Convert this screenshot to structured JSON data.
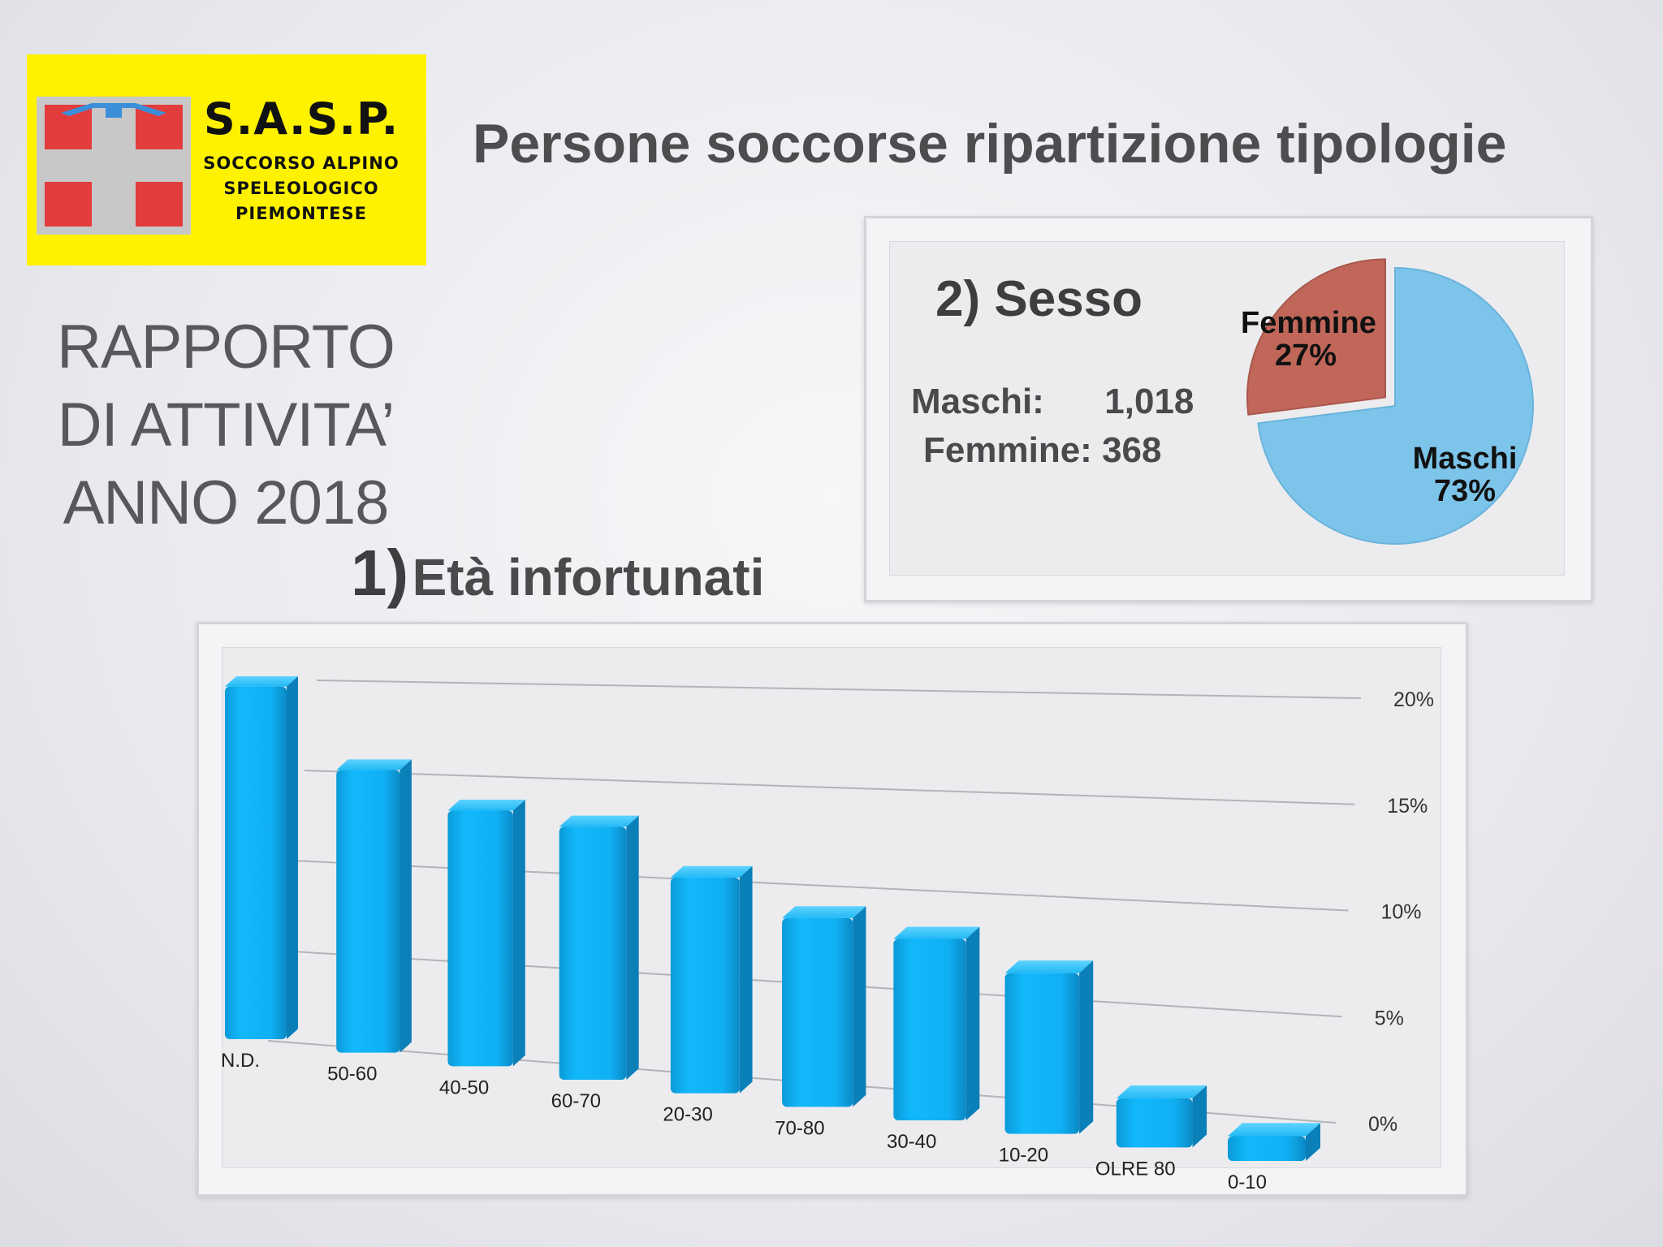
{
  "logo": {
    "title": "S.A.S.P.",
    "lines": [
      "SOCCORSO ALPINO",
      "SPELEOLOGICO",
      "PIEMONTESE"
    ]
  },
  "header": {
    "title": "Persone soccorse ripartizione tipologie"
  },
  "report": {
    "lines": [
      "RAPPORTO",
      "DI ATTIVITA’",
      "ANNO 2018"
    ]
  },
  "age_section": {
    "number": "1)",
    "title": "Età infortunati"
  },
  "sex_section": {
    "title": "2) Sesso",
    "male_label": "Maschi:",
    "male_value": "1,018",
    "female_label": "Femmine:",
    "female_value": "368"
  },
  "colors": {
    "bar": "#0fb0f5",
    "pie_male": "#7cc4ea",
    "pie_female": "#c0675a",
    "logo_bg": "#fff200",
    "logo_red": "#e33c3c"
  },
  "chart_data": [
    {
      "type": "bar",
      "categories": [
        "N.D.",
        "50-60",
        "40-50",
        "60-70",
        "20-30",
        "70-80",
        "30-40",
        "10-20",
        "OLRE 80",
        "0-10"
      ],
      "values": [
        20.3,
        16.1,
        14.4,
        14.1,
        11.9,
        10.3,
        9.8,
        8.6,
        2.6,
        1.3
      ],
      "ytick_labels": [
        "0%",
        "5%",
        "10%",
        "15%",
        "20%"
      ],
      "ylim": [
        0,
        20
      ],
      "grid": true,
      "legend": "none",
      "style": "3d"
    },
    {
      "type": "pie",
      "slices": [
        {
          "name": "Maschi",
          "label": "73%",
          "value": 73
        },
        {
          "name": "Femmine",
          "label": "27%",
          "value": 27
        }
      ],
      "exploded": "Femmine",
      "legend": "none"
    }
  ]
}
